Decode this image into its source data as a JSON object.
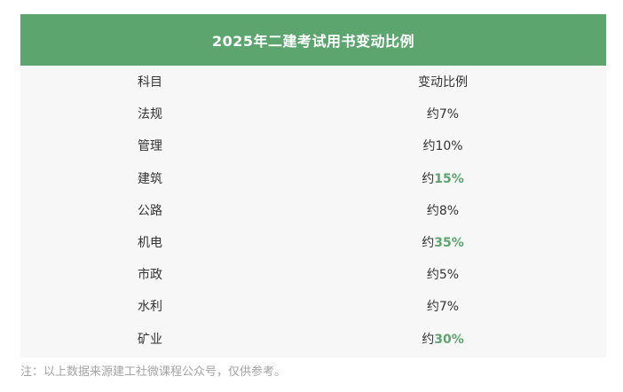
{
  "title": "2025年二建考试用书变动比例",
  "header": {
    "subject": "科目",
    "ratio": "变动比例"
  },
  "rows": [
    {
      "subject": "法规",
      "prefix": "约",
      "value": "7%",
      "highlight": false
    },
    {
      "subject": "管理",
      "prefix": "约",
      "value": "10%",
      "highlight": false
    },
    {
      "subject": "建筑",
      "prefix": "约",
      "value": "15%",
      "highlight": true
    },
    {
      "subject": "公路",
      "prefix": "约",
      "value": "8%",
      "highlight": false
    },
    {
      "subject": "机电",
      "prefix": "约",
      "value": "35%",
      "highlight": true
    },
    {
      "subject": "市政",
      "prefix": "约",
      "value": "5%",
      "highlight": false
    },
    {
      "subject": "水利",
      "prefix": "约",
      "value": "7%",
      "highlight": false
    },
    {
      "subject": "矿业",
      "prefix": "约",
      "value": "30%",
      "highlight": true
    }
  ],
  "note": "注：以上数据来源建工社微课程公众号，仅供参考。",
  "colors": {
    "header_bg": "#5ca56e",
    "highlight": "#5ca56e",
    "table_bg": "#f7f7f7",
    "note": "#a3a3a3"
  }
}
